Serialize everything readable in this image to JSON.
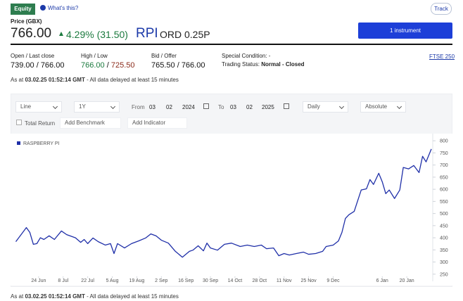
{
  "header": {
    "badge": "Equity",
    "help_link": "What's this?",
    "track_button": "Track",
    "price_label": "Price (GBX)",
    "price": "766.00",
    "change": "4.29% (31.50)",
    "symbol": "RPI",
    "share_class": "ORD 0.25P",
    "instrument_button": "1 instrument"
  },
  "quote": {
    "open_last_close": {
      "label": "Open / Last close",
      "value": "739.00 / 766.00"
    },
    "high_low": {
      "label": "High / Low",
      "high": "766.00",
      "separator": "/",
      "low": "725.50"
    },
    "bid_offer": {
      "label": "Bid / Offer",
      "value": "765.50 / 766.00"
    },
    "special_condition": "Special Condition: -",
    "trading_status": {
      "label": "Trading Status:",
      "value": "Normal - Closed"
    },
    "index_link": "FTSE 250"
  },
  "delay_notice_top": {
    "prefix": "As at",
    "timestamp": "03.02.25 01:52:14 GMT",
    "suffix": "- All data delayed at least 15 minutes"
  },
  "controls": {
    "chart_style": "Line",
    "period": "1Y",
    "from_label": "From",
    "from_day": "03",
    "from_month": "02",
    "from_year": "2024",
    "to_label": "To",
    "to_day": "03",
    "to_month": "02",
    "to_year": "2025",
    "interval": "Daily",
    "mode": "Absolute",
    "total_return": "Total Return",
    "benchmark_placeholder": "Add Benchmark",
    "indicator_placeholder": "Add Indicator"
  },
  "chart_data": {
    "type": "line",
    "x": [
      "11 Jun",
      "14 Jun",
      "17 Jun",
      "19 Jun",
      "21 Jun",
      "23 Jun",
      "25 Jun",
      "27 Jun",
      "30 Jun",
      "3 Jul",
      "7 Jul",
      "10 Jul",
      "15 Jul",
      "18 Jul",
      "20 Jul",
      "22 Jul",
      "25 Jul",
      "28 Jul",
      "1 Aug",
      "4 Aug",
      "6 Aug",
      "8 Aug",
      "12 Aug",
      "16 Aug",
      "20 Aug",
      "24 Aug",
      "27 Aug",
      "30 Aug",
      "2 Sep",
      "6 Sep",
      "10 Sep",
      "14 Sep",
      "18 Sep",
      "20 Sep",
      "23 Sep",
      "26 Sep",
      "28 Sep",
      "30 Sep",
      "4 Oct",
      "8 Oct",
      "12 Oct",
      "17 Oct",
      "21 Oct",
      "25 Oct",
      "29 Oct",
      "1 Nov",
      "5 Nov",
      "8 Nov",
      "11 Nov",
      "14 Nov",
      "18 Nov",
      "22 Nov",
      "25 Nov",
      "29 Nov",
      "3 Dec",
      "5 Dec",
      "9 Dec",
      "12 Dec",
      "14 Dec",
      "16 Dec",
      "18 Dec",
      "21 Dec",
      "23 Dec",
      "25 Dec",
      "28 Dec",
      "30 Dec",
      "1 Jan",
      "4 Jan",
      "6 Jan",
      "8 Jan",
      "10 Jan",
      "13 Jan",
      "16 Jan",
      "18 Jan",
      "21 Jan",
      "24 Jan",
      "27 Jan",
      "29 Jan",
      "31 Jan",
      "3 Feb"
    ],
    "series": [
      {
        "name": "RASPBERRY PI",
        "color": "#1f2fa8",
        "values": [
          384,
          413,
          442,
          422,
          373,
          376,
          400,
          393,
          408,
          393,
          428,
          413,
          400,
          381,
          393,
          376,
          399,
          384,
          370,
          376,
          335,
          376,
          358,
          376,
          387,
          399,
          416,
          408,
          390,
          378,
          344,
          320,
          344,
          349,
          367,
          346,
          378,
          358,
          349,
          373,
          378,
          364,
          370,
          364,
          370,
          355,
          358,
          326,
          335,
          329,
          335,
          341,
          332,
          335,
          344,
          364,
          370,
          387,
          422,
          480,
          495,
          509,
          553,
          597,
          602,
          640,
          620,
          666,
          631,
          582,
          597,
          562,
          597,
          690,
          684,
          698,
          669,
          736,
          713,
          766
        ]
      }
    ],
    "xlim": [
      "10 Jun",
      "3 Feb"
    ],
    "xticks": [
      "24 Jun",
      "8 Jul",
      "22 Jul",
      "5 Aug",
      "19 Aug",
      "2 Sep",
      "16 Sep",
      "30 Sep",
      "14 Oct",
      "28 Oct",
      "11 Nov",
      "25 Nov",
      "9 Dec",
      "6 Jan",
      "20 Jan"
    ],
    "ylim": [
      235,
      815
    ],
    "yticks": [
      250,
      300,
      350,
      400,
      450,
      500,
      550,
      600,
      650,
      700,
      750,
      800
    ],
    "legend": "top-left"
  },
  "delay_notice_bottom": {
    "prefix": "As at",
    "timestamp": "03.02.25 01:52:14 GMT",
    "suffix": "- All data delayed at least 15 minutes"
  }
}
